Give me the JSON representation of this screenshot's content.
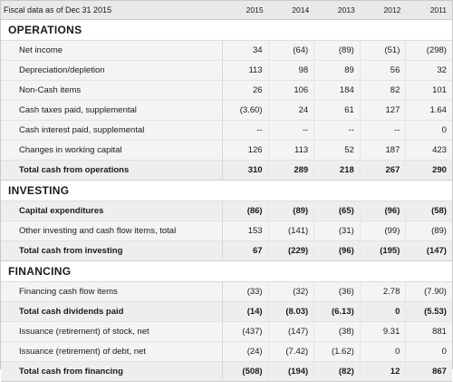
{
  "header": {
    "label": "Fiscal data as of Dec 31 2015",
    "years": [
      "2015",
      "2014",
      "2013",
      "2012",
      "2011"
    ]
  },
  "sections": [
    {
      "title": "OPERATIONS",
      "rows": [
        {
          "label": "Net income",
          "bold": false,
          "values": [
            "34",
            "(64)",
            "(89)",
            "(51)",
            "(298)"
          ]
        },
        {
          "label": "Depreciation/depletion",
          "bold": false,
          "values": [
            "113",
            "98",
            "89",
            "56",
            "32"
          ]
        },
        {
          "label": "Non-Cash items",
          "bold": false,
          "values": [
            "26",
            "106",
            "184",
            "82",
            "101"
          ]
        },
        {
          "label": "Cash taxes paid, supplemental",
          "bold": false,
          "values": [
            "(3.60)",
            "24",
            "61",
            "127",
            "1.64"
          ]
        },
        {
          "label": "Cash interest paid, supplemental",
          "bold": false,
          "values": [
            "--",
            "--",
            "--",
            "--",
            "0"
          ]
        },
        {
          "label": "Changes in working capital",
          "bold": false,
          "values": [
            "126",
            "113",
            "52",
            "187",
            "423"
          ]
        },
        {
          "label": "Total cash from operations",
          "bold": true,
          "values": [
            "310",
            "289",
            "218",
            "267",
            "290"
          ]
        }
      ]
    },
    {
      "title": "INVESTING",
      "rows": [
        {
          "label": "Capital expenditures",
          "bold": true,
          "values": [
            "(86)",
            "(89)",
            "(65)",
            "(96)",
            "(58)"
          ]
        },
        {
          "label": "Other investing and cash flow items, total",
          "bold": false,
          "values": [
            "153",
            "(141)",
            "(31)",
            "(99)",
            "(89)"
          ]
        },
        {
          "label": "Total cash from investing",
          "bold": true,
          "values": [
            "67",
            "(229)",
            "(96)",
            "(195)",
            "(147)"
          ]
        }
      ]
    },
    {
      "title": "FINANCING",
      "rows": [
        {
          "label": "Financing cash flow items",
          "bold": false,
          "values": [
            "(33)",
            "(32)",
            "(36)",
            "2.78",
            "(7.90)"
          ]
        },
        {
          "label": "Total cash dividends paid",
          "bold": true,
          "values": [
            "(14)",
            "(8.03)",
            "(6.13)",
            "0",
            "(5.53)"
          ]
        },
        {
          "label": "Issuance (retirement) of stock, net",
          "bold": false,
          "values": [
            "(437)",
            "(147)",
            "(38)",
            "9.31",
            "881"
          ]
        },
        {
          "label": "Issuance (retirement) of debt, net",
          "bold": false,
          "values": [
            "(24)",
            "(7.42)",
            "(1.62)",
            "0",
            "0"
          ]
        },
        {
          "label": "Total cash from financing",
          "bold": true,
          "values": [
            "(508)",
            "(194)",
            "(82)",
            "12",
            "867"
          ]
        }
      ]
    }
  ]
}
